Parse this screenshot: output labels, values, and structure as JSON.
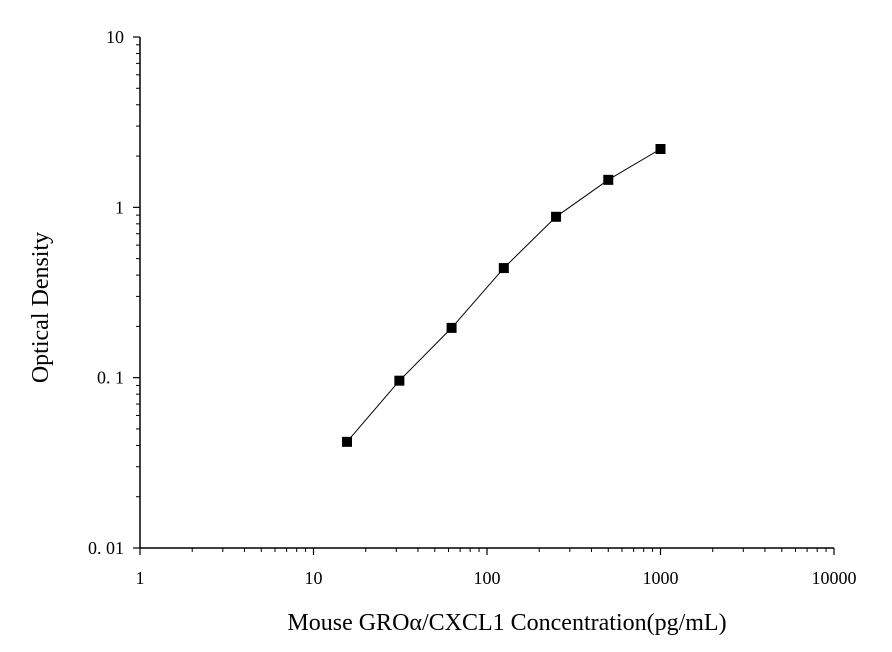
{
  "chart_data": {
    "type": "scatter",
    "title": "",
    "xlabel": "Mouse GROα/CXCL1 Concentration(pg/mL)",
    "ylabel": "Optical Density",
    "xscale": "log",
    "yscale": "log",
    "xlim": [
      1,
      10000
    ],
    "ylim": [
      0.01,
      10
    ],
    "grid": false,
    "legend": "none",
    "marker": "square",
    "connected": true,
    "color": "#000000",
    "x_ticks": [
      "1",
      "10",
      "100",
      "1000",
      "10000"
    ],
    "y_ticks": [
      "0. 01",
      "0. 1",
      "1",
      "10"
    ],
    "series": [
      {
        "x": [
          15.6,
          31.25,
          62.5,
          125,
          250,
          500,
          1000
        ],
        "y": [
          0.042,
          0.096,
          0.196,
          0.44,
          0.88,
          1.45,
          2.2
        ]
      }
    ]
  }
}
